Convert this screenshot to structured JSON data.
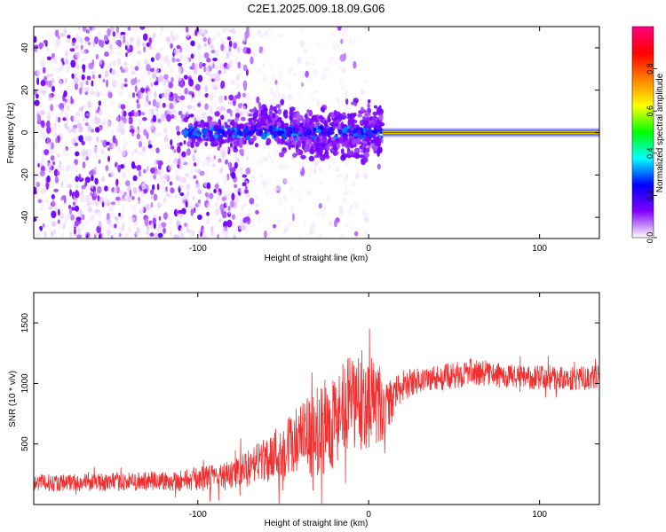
{
  "title": "C2E1.2025.009.18.09.G06",
  "chart_data": [
    {
      "type": "heatmap",
      "xlabel": "Height of straight line (km)",
      "ylabel": "Frequency (Hz)",
      "xlim": [
        -196,
        135
      ],
      "ylim": [
        -50,
        50
      ],
      "x_ticks": [
        -100,
        0,
        100
      ],
      "y_ticks": [
        -40,
        -20,
        0,
        20,
        40
      ],
      "colorbar": {
        "label": "Normalized spectral amplitude",
        "range": [
          0,
          1
        ],
        "ticks": [
          0.0,
          0.2,
          0.4,
          0.6,
          0.8
        ],
        "colormap": [
          "#ffffff",
          "#8000ff",
          "#0000ff",
          "#00ffff",
          "#00ff00",
          "#ffff00",
          "#ff8000",
          "#ff0000",
          "#ff0080"
        ]
      },
      "features": [
        {
          "description": "scattered low-amplitude noise",
          "x_range": [
            -196,
            -70
          ],
          "f_range": [
            -50,
            50
          ],
          "amplitude": [
            0.02,
            0.12
          ]
        },
        {
          "description": "sparse noise fading out",
          "x_range": [
            -70,
            0
          ],
          "f_range": [
            -50,
            50
          ],
          "amplitude": [
            0.02,
            0.05
          ]
        },
        {
          "description": "broadened line near 0 Hz",
          "x_range": [
            -110,
            8
          ],
          "f_range": [
            -10,
            15
          ],
          "amplitude": [
            0.1,
            0.35
          ]
        },
        {
          "description": "steady carrier line",
          "x_range": [
            8,
            135
          ],
          "f": 0,
          "amplitude": 0.85
        }
      ]
    },
    {
      "type": "line",
      "xlabel": "Height of straight line (km)",
      "ylabel": "SNR (10 * v/v)",
      "xlim": [
        -196,
        135
      ],
      "ylim": [
        0,
        1750
      ],
      "x_ticks": [
        -100,
        0,
        100
      ],
      "y_ticks": [
        500,
        1000,
        1500
      ],
      "line_color": "#f03030",
      "series": [
        {
          "x": [
            -196,
            -150,
            -110,
            -80,
            -70,
            -60,
            -50,
            -40,
            -30,
            -20,
            -10,
            0,
            5,
            10,
            15,
            20,
            30,
            50,
            60,
            80,
            100,
            120,
            135
          ],
          "y": [
            180,
            185,
            200,
            240,
            300,
            380,
            450,
            530,
            600,
            700,
            820,
            880,
            800,
            750,
            900,
            980,
            1030,
            1060,
            1100,
            1060,
            1050,
            1040,
            1050
          ],
          "spread": [
            70,
            75,
            90,
            120,
            150,
            200,
            260,
            300,
            380,
            400,
            420,
            420,
            350,
            250,
            150,
            120,
            110,
            110,
            110,
            100,
            100,
            100,
            100
          ]
        }
      ]
    }
  ]
}
